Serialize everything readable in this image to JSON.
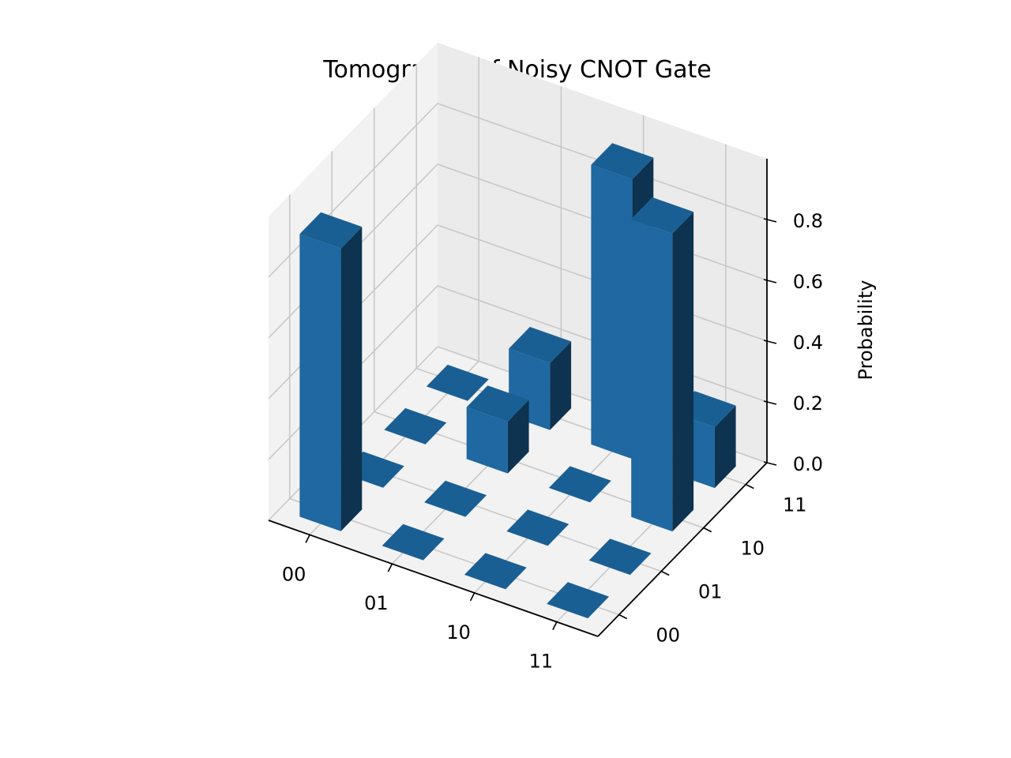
{
  "chart_data": {
    "type": "bar3d",
    "title": "Tomography of Noisy CNOT Gate",
    "xlabel": "",
    "ylabel": "",
    "zlabel": "Probability",
    "x_categories": [
      "00",
      "01",
      "10",
      "11"
    ],
    "y_categories": [
      "00",
      "01",
      "10",
      "11"
    ],
    "z_ticks": [
      "0.0",
      "0.2",
      "0.4",
      "0.6",
      "0.8"
    ],
    "zlim": [
      0,
      1.0
    ],
    "grid": true,
    "bar_color": "#1f77b4",
    "values": [
      [
        0.93,
        0.0,
        0.0,
        0.0
      ],
      [
        0.0,
        0.0,
        0.17,
        0.22
      ],
      [
        0.0,
        0.0,
        0.0,
        0.92
      ],
      [
        0.0,
        0.0,
        0.98,
        0.2
      ]
    ]
  }
}
